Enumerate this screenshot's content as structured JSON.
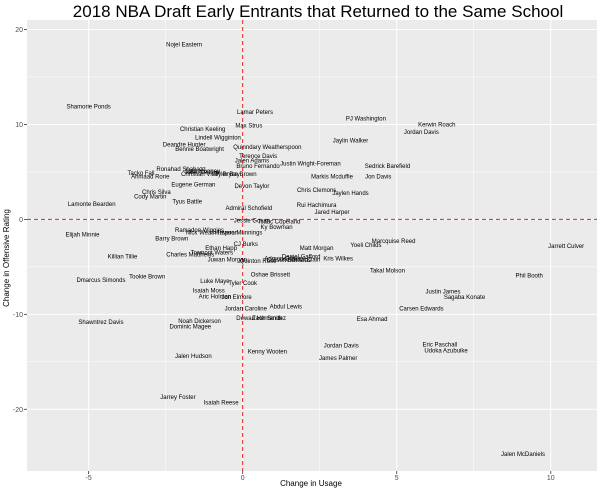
{
  "chart_data": {
    "type": "scatter",
    "title": "2018 NBA Draft Early Entrants that Returned to the Same School",
    "xlabel": "Change in Usage",
    "ylabel": "Change in Offensive Rating",
    "xlim": [
      -7,
      11.5
    ],
    "ylim": [
      -26.5,
      21
    ],
    "x_ticks": [
      -5,
      0,
      5,
      10
    ],
    "x_tick_labels": [
      "-5",
      "0",
      "5",
      "10"
    ],
    "y_ticks": [
      -20,
      -10,
      0,
      10,
      20
    ],
    "y_tick_labels": [
      "-20",
      "-10",
      "0",
      "10",
      "20"
    ],
    "grid": true,
    "background_color": "#ebebeb",
    "grid_color": "#ffffff",
    "reference_line_color": "#e8201c",
    "reference_lines": {
      "x": 0,
      "y": 0
    },
    "points": [
      {
        "label": "Nojel Eastern",
        "x": -1.9,
        "y": 18.4
      },
      {
        "label": "Shamorie Ponds",
        "x": -5.0,
        "y": 11.9
      },
      {
        "label": "Lamar Peters",
        "x": 0.4,
        "y": 11.3
      },
      {
        "label": "PJ Washington",
        "x": 4.0,
        "y": 10.6
      },
      {
        "label": "Kerwin Roach",
        "x": 6.3,
        "y": 10.0
      },
      {
        "label": "Max Strus",
        "x": 0.2,
        "y": 9.9
      },
      {
        "label": "Christian Keeling",
        "x": -1.3,
        "y": 9.5
      },
      {
        "label": "Jordan Davis",
        "x": 5.8,
        "y": 9.2
      },
      {
        "label": "Lindell Wigginton",
        "x": -0.8,
        "y": 8.6
      },
      {
        "label": "Jaylin Walker",
        "x": 3.5,
        "y": 8.3
      },
      {
        "label": "Deandre Hunter",
        "x": -1.9,
        "y": 7.9
      },
      {
        "label": "Quinndary Weatherspoon",
        "x": 0.8,
        "y": 7.6
      },
      {
        "label": "Bennie Boatwright",
        "x": -1.4,
        "y": 7.4
      },
      {
        "label": "Terence Davis",
        "x": 0.5,
        "y": 6.7
      },
      {
        "label": "Jalen Adams",
        "x": 0.3,
        "y": 6.2
      },
      {
        "label": "Justin Wright-Foreman",
        "x": 2.2,
        "y": 5.9
      },
      {
        "label": "Sedrick Barefield",
        "x": 4.7,
        "y": 5.6
      },
      {
        "label": "Bruno Fernando",
        "x": 0.5,
        "y": 5.6
      },
      {
        "label": "Ronahad Shabazz",
        "x": -2.0,
        "y": 5.3
      },
      {
        "label": "Tacko Fall",
        "x": -3.3,
        "y": 4.9
      },
      {
        "label": "Jalen Lecque",
        "x": -1.3,
        "y": 5.0
      },
      {
        "label": "Matt Mooney",
        "x": -1.3,
        "y": 5.1
      },
      {
        "label": "Christian Vital",
        "x": -1.4,
        "y": 4.8
      },
      {
        "label": "Tyler Bey",
        "x": -0.5,
        "y": 4.8
      },
      {
        "label": "Bryce Brown",
        "x": -0.1,
        "y": 4.8
      },
      {
        "label": "Jon Davis",
        "x": 4.4,
        "y": 4.5
      },
      {
        "label": "Markis Mcduffie",
        "x": 2.9,
        "y": 4.5
      },
      {
        "label": "Ahmaad Rorie",
        "x": -3.0,
        "y": 4.5
      },
      {
        "label": "Eugene German",
        "x": -1.6,
        "y": 3.7
      },
      {
        "label": "Devon Taylor",
        "x": 0.3,
        "y": 3.5
      },
      {
        "label": "Chris Clemons",
        "x": 2.4,
        "y": 3.1
      },
      {
        "label": "Jaylen Hands",
        "x": 3.5,
        "y": 2.8
      },
      {
        "label": "Chris Silva",
        "x": -2.8,
        "y": 2.9
      },
      {
        "label": "Cody Martin",
        "x": -3.0,
        "y": 2.4
      },
      {
        "label": "Tyus Battle",
        "x": -1.8,
        "y": 1.9
      },
      {
        "label": "Lamonte Bearden",
        "x": -4.9,
        "y": 1.6
      },
      {
        "label": "Rui Hachimura",
        "x": 2.4,
        "y": 1.5
      },
      {
        "label": "Admiral Schofield",
        "x": 0.2,
        "y": 1.2
      },
      {
        "label": "Jared Harper",
        "x": 2.9,
        "y": 0.8
      },
      {
        "label": "Jessie Govan",
        "x": 0.3,
        "y": -0.1
      },
      {
        "label": "Isaac Copeland",
        "x": 1.2,
        "y": -0.2
      },
      {
        "label": "Ky Bowman",
        "x": 1.1,
        "y": -0.8
      },
      {
        "label": "Ramadon Wiggins",
        "x": -1.4,
        "y": -1.1
      },
      {
        "label": "Nick Weatherspoon",
        "x": -1.0,
        "y": -1.4
      },
      {
        "label": "Tavera Munnings",
        "x": -0.1,
        "y": -1.4
      },
      {
        "label": "Elijah Minnie",
        "x": -5.2,
        "y": -1.6
      },
      {
        "label": "Barry Brown",
        "x": -2.3,
        "y": -2.0
      },
      {
        "label": "Marcquise Reed",
        "x": 4.9,
        "y": -2.3
      },
      {
        "label": "Yoeli Childs",
        "x": 4.0,
        "y": -2.7
      },
      {
        "label": "CJ Burks",
        "x": 0.1,
        "y": -2.6
      },
      {
        "label": "Jarrett Culver",
        "x": 10.5,
        "y": -2.8
      },
      {
        "label": "Matt Morgan",
        "x": 2.4,
        "y": -3.0
      },
      {
        "label": "Ethan Happ",
        "x": -0.7,
        "y": -3.0
      },
      {
        "label": "Tremont Waters",
        "x": -1.0,
        "y": -3.5
      },
      {
        "label": "Charles Matthews",
        "x": -1.7,
        "y": -3.7
      },
      {
        "label": "Daniel Gafford",
        "x": 1.9,
        "y": -3.9
      },
      {
        "label": "Killian Tillie",
        "x": -3.9,
        "y": -3.9
      },
      {
        "label": "Kris Wilkes",
        "x": 3.1,
        "y": -4.1
      },
      {
        "label": "Juwan Morgan",
        "x": -0.5,
        "y": -4.2
      },
      {
        "label": "Admon Gilder",
        "x": 1.3,
        "y": -4.1
      },
      {
        "label": "Kevin McClain",
        "x": 1.9,
        "y": -4.2
      },
      {
        "label": "Quinton Rose",
        "x": 0.5,
        "y": -4.4
      },
      {
        "label": "Carsen Edwards",
        "x": 1.5,
        "y": -4.3
      },
      {
        "label": "Takal Molson",
        "x": 4.7,
        "y": -5.4
      },
      {
        "label": "Oshae Brissett",
        "x": 0.9,
        "y": -5.8
      },
      {
        "label": "Tookie Brown",
        "x": -3.1,
        "y": -6.0
      },
      {
        "label": "Phil Booth",
        "x": 9.3,
        "y": -5.9
      },
      {
        "label": "Dmarcus Simonds",
        "x": -4.6,
        "y": -6.4
      },
      {
        "label": "Luke Maye",
        "x": -0.9,
        "y": -6.5
      },
      {
        "label": "Tyler Cook",
        "x": 0.0,
        "y": -6.7
      },
      {
        "label": "Isaiah Moss",
        "x": -1.1,
        "y": -7.5
      },
      {
        "label": "Justin James",
        "x": 6.5,
        "y": -7.6
      },
      {
        "label": "Sagaba Konate",
        "x": 7.2,
        "y": -8.2
      },
      {
        "label": "Aric Holman",
        "x": -0.9,
        "y": -8.1
      },
      {
        "label": "Jon Elmore",
        "x": -0.2,
        "y": -8.2
      },
      {
        "label": "Abdul Lewis",
        "x": 1.4,
        "y": -9.2
      },
      {
        "label": "Jordan Caroline",
        "x": 0.1,
        "y": -9.4
      },
      {
        "label": "Carsen Edwards",
        "x": 5.8,
        "y": -9.4
      },
      {
        "label": "Dewan Hernandez",
        "x": 0.6,
        "y": -10.4
      },
      {
        "label": "Zach Smith",
        "x": 0.8,
        "y": -10.4
      },
      {
        "label": "Esa Ahmad",
        "x": 4.2,
        "y": -10.5
      },
      {
        "label": "Shawntrez Davis",
        "x": -4.6,
        "y": -10.8
      },
      {
        "label": "Noah Dickerson",
        "x": -1.4,
        "y": -10.7
      },
      {
        "label": "Dominic Magee",
        "x": -1.7,
        "y": -11.3
      },
      {
        "label": "Eric Paschall",
        "x": 6.4,
        "y": -13.2
      },
      {
        "label": "Jordan Davis",
        "x": 3.2,
        "y": -13.3
      },
      {
        "label": "Udoka Azubuike",
        "x": 6.6,
        "y": -13.8
      },
      {
        "label": "Kenny Wooten",
        "x": 0.8,
        "y": -13.9
      },
      {
        "label": "Jalen Hudson",
        "x": -1.6,
        "y": -14.4
      },
      {
        "label": "James Palmer",
        "x": 3.1,
        "y": -14.6
      },
      {
        "label": "Jarrey Foster",
        "x": -2.1,
        "y": -18.7
      },
      {
        "label": "Isaiah Reese",
        "x": -0.7,
        "y": -19.3
      },
      {
        "label": "Jalen McDaniels",
        "x": 9.1,
        "y": -24.7
      }
    ]
  }
}
